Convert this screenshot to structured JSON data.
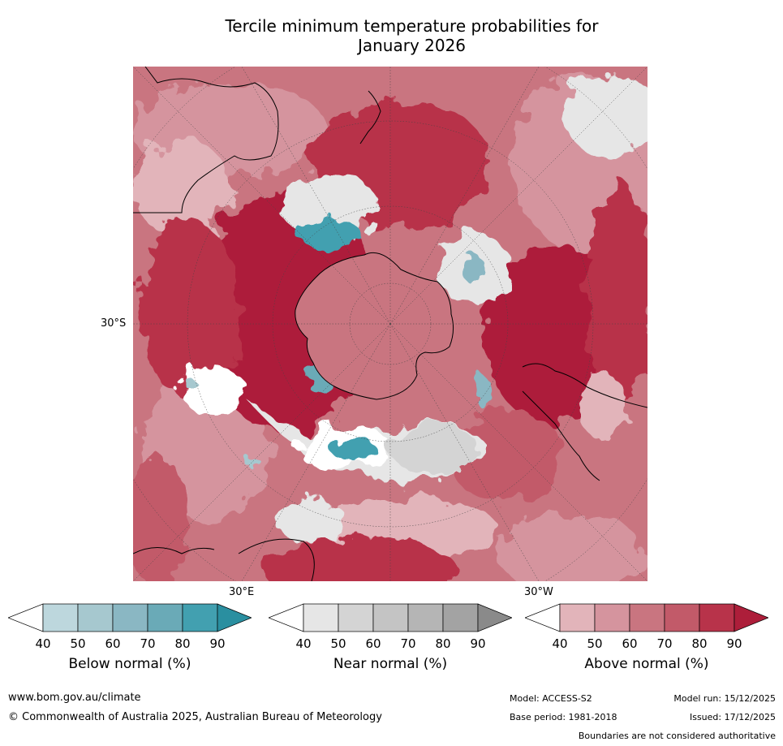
{
  "title_line1": "Tercile minimum temperature probabilities for",
  "title_line2": "January 2026",
  "map_labels": {
    "lat_30s": "30°S",
    "lon_30e": "30°E",
    "lon_30w": "30°W"
  },
  "legends": [
    {
      "title": "Below normal (%)",
      "ticks": [
        "40",
        "50",
        "60",
        "70",
        "80",
        "90"
      ],
      "colors": [
        "#ffffff",
        "#bdd7dd",
        "#a6c8cf",
        "#8ab7c3",
        "#6aaab7",
        "#42a0b0",
        "#2a8fa0"
      ]
    },
    {
      "title": "Near normal (%)",
      "ticks": [
        "40",
        "50",
        "60",
        "70",
        "80",
        "90"
      ],
      "colors": [
        "#ffffff",
        "#e6e6e6",
        "#d4d4d4",
        "#c4c4c4",
        "#b5b5b5",
        "#a3a3a3",
        "#8a8a8a"
      ]
    },
    {
      "title": "Above normal (%)",
      "ticks": [
        "40",
        "50",
        "60",
        "70",
        "80",
        "90"
      ],
      "colors": [
        "#ffffff",
        "#e2b4ba",
        "#d5949e",
        "#c97580",
        "#c25a69",
        "#b8334a",
        "#ad1e3a"
      ]
    }
  ],
  "footer": {
    "website": "www.bom.gov.au/climate",
    "copyright": "© Commonwealth of Australia 2025, Australian Bureau of Meteorology",
    "model": "Model: ACCESS-S2",
    "model_run": "Model run: 15/12/2025",
    "base_period": "Base period: 1981-2018",
    "issued": "Issued: 17/12/2025",
    "disclaimer": "Boundaries are not considered authoritative"
  }
}
